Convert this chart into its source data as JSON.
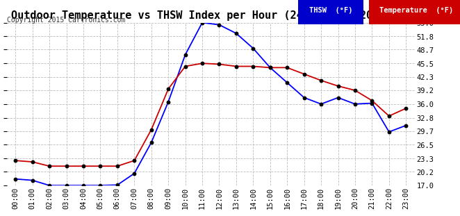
{
  "title": "Outdoor Temperature vs THSW Index per Hour (24 Hours)  20150307",
  "copyright": "Copyright 2015 Cartronics.com",
  "hours": [
    "00:00",
    "01:00",
    "02:00",
    "03:00",
    "04:00",
    "05:00",
    "06:00",
    "07:00",
    "08:00",
    "09:00",
    "10:00",
    "11:00",
    "12:00",
    "13:00",
    "14:00",
    "15:00",
    "16:00",
    "17:00",
    "18:00",
    "19:00",
    "20:00",
    "21:00",
    "22:00",
    "23:00"
  ],
  "thsw": [
    18.5,
    18.2,
    17.0,
    17.0,
    17.0,
    17.0,
    17.1,
    19.8,
    27.0,
    36.5,
    47.5,
    55.0,
    54.5,
    52.5,
    49.0,
    44.5,
    41.0,
    37.5,
    36.0,
    37.5,
    36.0,
    36.2,
    29.5,
    31.0
  ],
  "temperature": [
    22.8,
    22.5,
    21.5,
    21.5,
    21.5,
    21.5,
    21.5,
    22.8,
    30.0,
    39.5,
    44.8,
    45.5,
    45.3,
    44.8,
    44.8,
    44.5,
    44.5,
    43.0,
    41.5,
    40.2,
    39.2,
    36.8,
    33.2,
    35.0
  ],
  "thsw_color": "#0000ff",
  "temp_color": "#cc0000",
  "marker_color": "#000000",
  "background_color": "#ffffff",
  "grid_color": "#bbbbbb",
  "ylim": [
    17.0,
    55.0
  ],
  "yticks": [
    17.0,
    20.2,
    23.3,
    26.5,
    29.7,
    32.8,
    36.0,
    39.2,
    42.3,
    45.5,
    48.7,
    51.8,
    55.0
  ],
  "title_fontsize": 11,
  "tick_fontsize": 7.5,
  "copyright_fontsize": 7,
  "legend_thsw_label": "THSW  (°F)",
  "legend_temp_label": "Temperature  (°F)",
  "legend_thsw_bg": "#0000cc",
  "legend_temp_bg": "#cc0000"
}
